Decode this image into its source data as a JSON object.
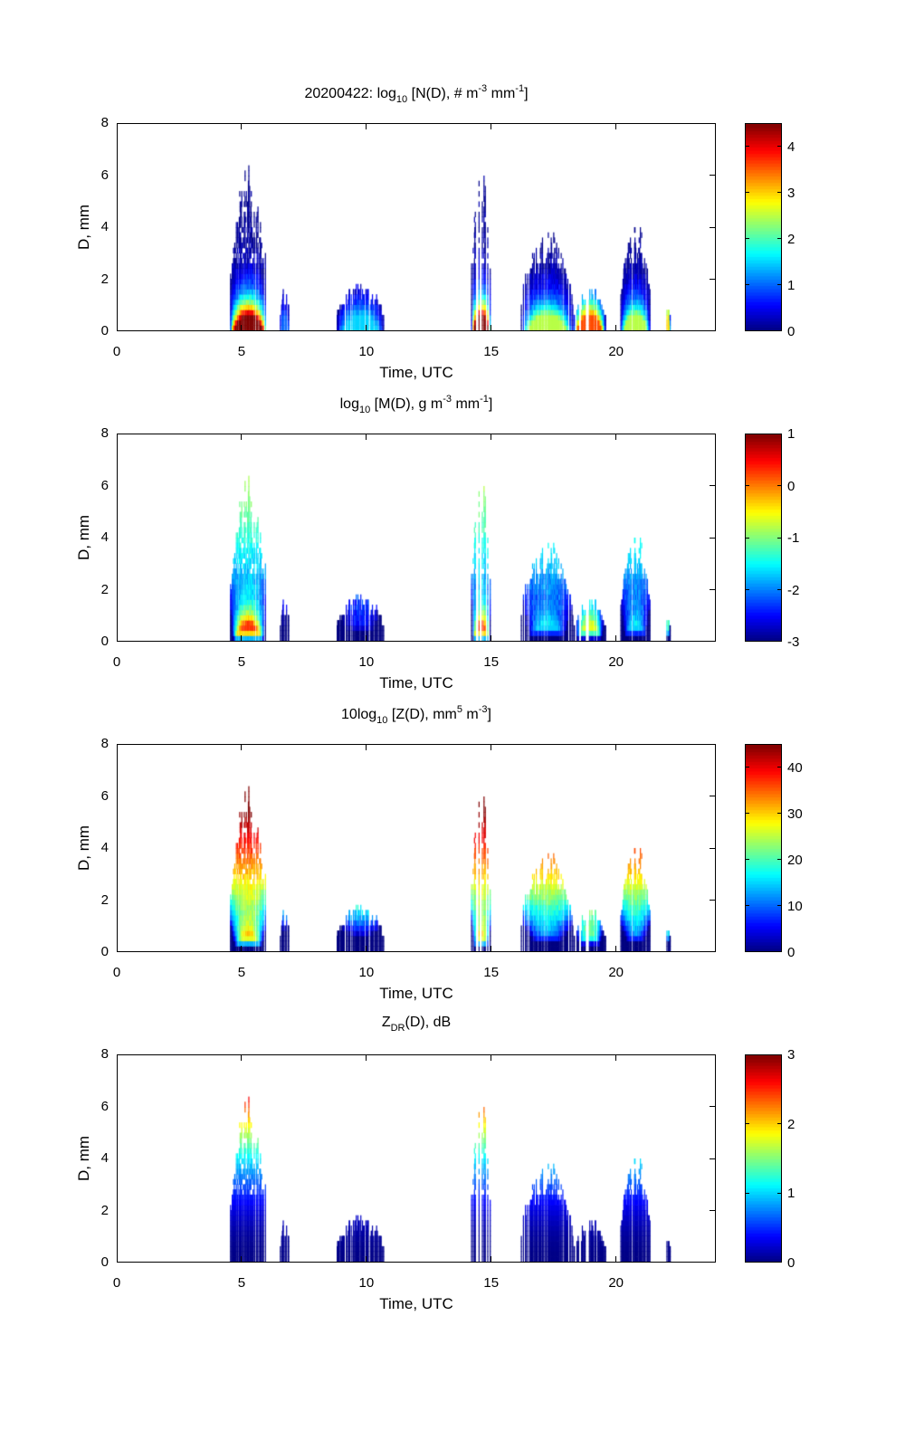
{
  "figure": {
    "date": "20200422",
    "xlabel": "Time, UTC",
    "ylabel": "D, mm"
  },
  "chart_data": [
    {
      "type": "heatmap",
      "id": "nd",
      "title_parts": {
        "prefix": "20200422: log",
        "sub": "10",
        "mid1": " [N(D), # m",
        "sup1": "-3",
        "mid2": " mm",
        "sup2": "-1",
        "suffix": "]"
      },
      "title": "20200422: log10 [N(D), # m-3 mm-1]",
      "xlabel": "Time, UTC",
      "ylabel": "D, mm",
      "xlim": [
        0,
        24
      ],
      "ylim": [
        0,
        8
      ],
      "xticks": [
        0,
        5,
        10,
        15,
        20
      ],
      "yticks": [
        0,
        2,
        4,
        6,
        8
      ],
      "colorbar": {
        "min": 0,
        "max": 4.5,
        "ticks": [
          0,
          1,
          2,
          3,
          4
        ],
        "colormap": "jet"
      },
      "events": [
        {
          "t_start": 4.5,
          "t_end": 6.0,
          "d_max": 6.5,
          "peak_value": 4.5
        },
        {
          "t_start": 6.5,
          "t_end": 6.9,
          "d_max": 1.7,
          "peak_value": 1.0
        },
        {
          "t_start": 8.8,
          "t_end": 10.7,
          "d_max": 1.9,
          "peak_value": 1.5
        },
        {
          "t_start": 14.2,
          "t_end": 15.0,
          "d_max": 7.0,
          "peak_value": 4.5
        },
        {
          "t_start": 16.2,
          "t_end": 18.3,
          "d_max": 3.9,
          "peak_value": 2.5
        },
        {
          "t_start": 18.3,
          "t_end": 19.6,
          "d_max": 1.7,
          "peak_value": 3.6
        },
        {
          "t_start": 20.2,
          "t_end": 21.4,
          "d_max": 4.3,
          "peak_value": 2.5
        },
        {
          "t_start": 22.0,
          "t_end": 22.2,
          "d_max": 1.3,
          "peak_value": 3.0
        }
      ]
    },
    {
      "type": "heatmap",
      "id": "md",
      "title_parts": {
        "prefix": "log",
        "sub": "10",
        "mid1": " [M(D), g m",
        "sup1": "-3",
        "mid2": " mm",
        "sup2": "-1",
        "suffix": "]"
      },
      "title": "log10 [M(D), g m-3 mm-1]",
      "xlabel": "Time, UTC",
      "ylabel": "D, mm",
      "xlim": [
        0,
        24
      ],
      "ylim": [
        0,
        8
      ],
      "xticks": [
        0,
        5,
        10,
        15,
        20
      ],
      "yticks": [
        0,
        2,
        4,
        6,
        8
      ],
      "colorbar": {
        "min": -3,
        "max": 1,
        "ticks": [
          -3,
          -2,
          -1,
          0,
          1
        ],
        "colormap": "jet"
      }
    },
    {
      "type": "heatmap",
      "id": "zd",
      "title_parts": {
        "prefix": "10log",
        "sub": "10",
        "mid1": " [Z(D),  mm",
        "sup1": "5",
        "mid2": " m",
        "sup2": "-3",
        "suffix": "]"
      },
      "title": "10log10 [Z(D),  mm5 m-3]",
      "xlabel": "Time, UTC",
      "ylabel": "D, mm",
      "xlim": [
        0,
        24
      ],
      "ylim": [
        0,
        8
      ],
      "xticks": [
        0,
        5,
        10,
        15,
        20
      ],
      "yticks": [
        0,
        2,
        4,
        6,
        8
      ],
      "colorbar": {
        "min": 0,
        "max": 45,
        "ticks": [
          0,
          10,
          20,
          30,
          40
        ],
        "colormap": "jet"
      }
    },
    {
      "type": "heatmap",
      "id": "zdr",
      "title_parts": {
        "prefix": "Z",
        "sub": "DR",
        "mid1": "(D), dB",
        "sup1": "",
        "mid2": "",
        "sup2": "",
        "suffix": ""
      },
      "title": "ZDR(D), dB",
      "xlabel": "Time, UTC",
      "ylabel": "D, mm",
      "xlim": [
        0,
        24
      ],
      "ylim": [
        0,
        8
      ],
      "xticks": [
        0,
        5,
        10,
        15,
        20
      ],
      "yticks": [
        0,
        2,
        4,
        6,
        8
      ],
      "colorbar": {
        "min": 0,
        "max": 3,
        "ticks": [
          0,
          1,
          2,
          3
        ],
        "colormap": "jet"
      }
    }
  ]
}
